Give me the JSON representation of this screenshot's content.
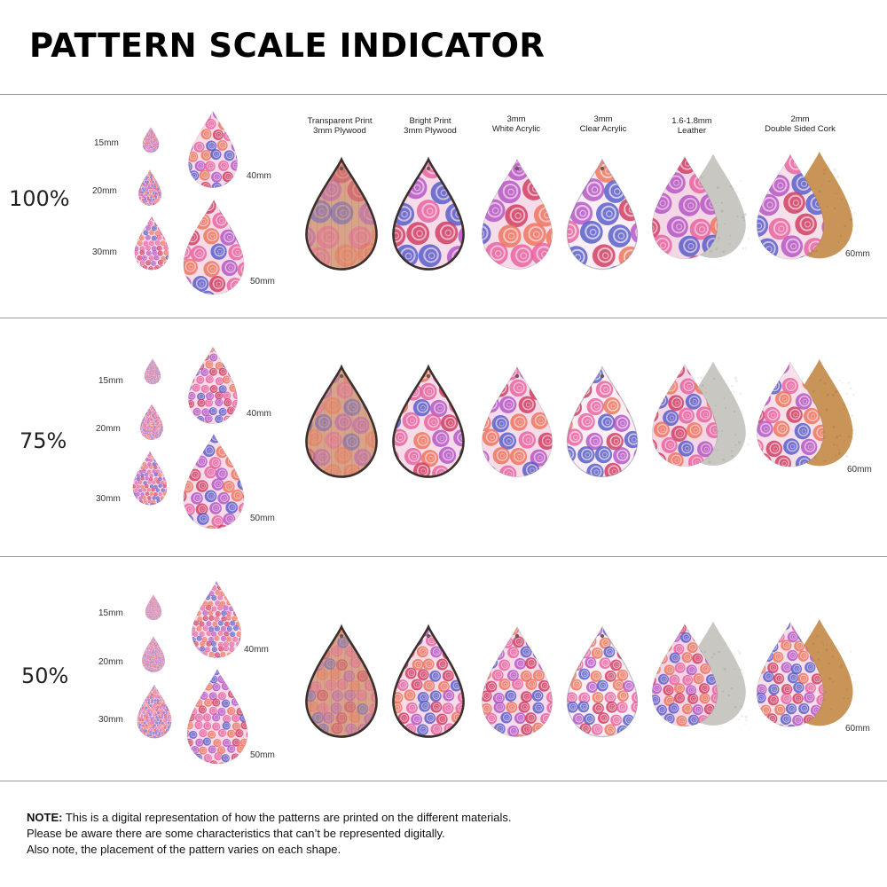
{
  "title": "PATTERN SCALE INDICATOR",
  "colors": {
    "rule": "#9a9a9a",
    "pink_base": "#f6dce9",
    "rose_red": "#d0345a",
    "rose_pink": "#e85d9c",
    "rose_purple": "#b14fc4",
    "rose_blue": "#4f57c9",
    "rose_orange": "#ef6f52",
    "plywood": "#d7a48a",
    "leather": "#c8c7c2",
    "cork": "#c99457"
  },
  "materials": [
    {
      "line1": "Transparent Print",
      "line2": "3mm Plywood"
    },
    {
      "line1": "Bright Print",
      "line2": "3mm Plywood"
    },
    {
      "line1": "3mm",
      "line2": "White Acrylic"
    },
    {
      "line1": "3mm",
      "line2": "Clear Acrylic"
    },
    {
      "line1": "1.6-1.8mm",
      "line2": "Leather"
    },
    {
      "line1": "2mm",
      "line2": "Double Sided Cork"
    }
  ],
  "sizes": {
    "s15": "15mm",
    "s20": "20mm",
    "s30": "30mm",
    "s40": "40mm",
    "s50": "50mm",
    "s60": "60mm"
  },
  "scales": [
    {
      "label": "100%",
      "pattern_scale": 1.0
    },
    {
      "label": "75%",
      "pattern_scale": 0.75
    },
    {
      "label": "50%",
      "pattern_scale": 0.5
    }
  ],
  "note": {
    "bold": "NOTE:",
    "line1": " This is a digital representation of how the patterns are printed on the different materials.",
    "line2": "Please be aware there are some characteristics that can’t be represented digitally.",
    "line3": "Also note, the placement of the pattern varies on each shape."
  }
}
